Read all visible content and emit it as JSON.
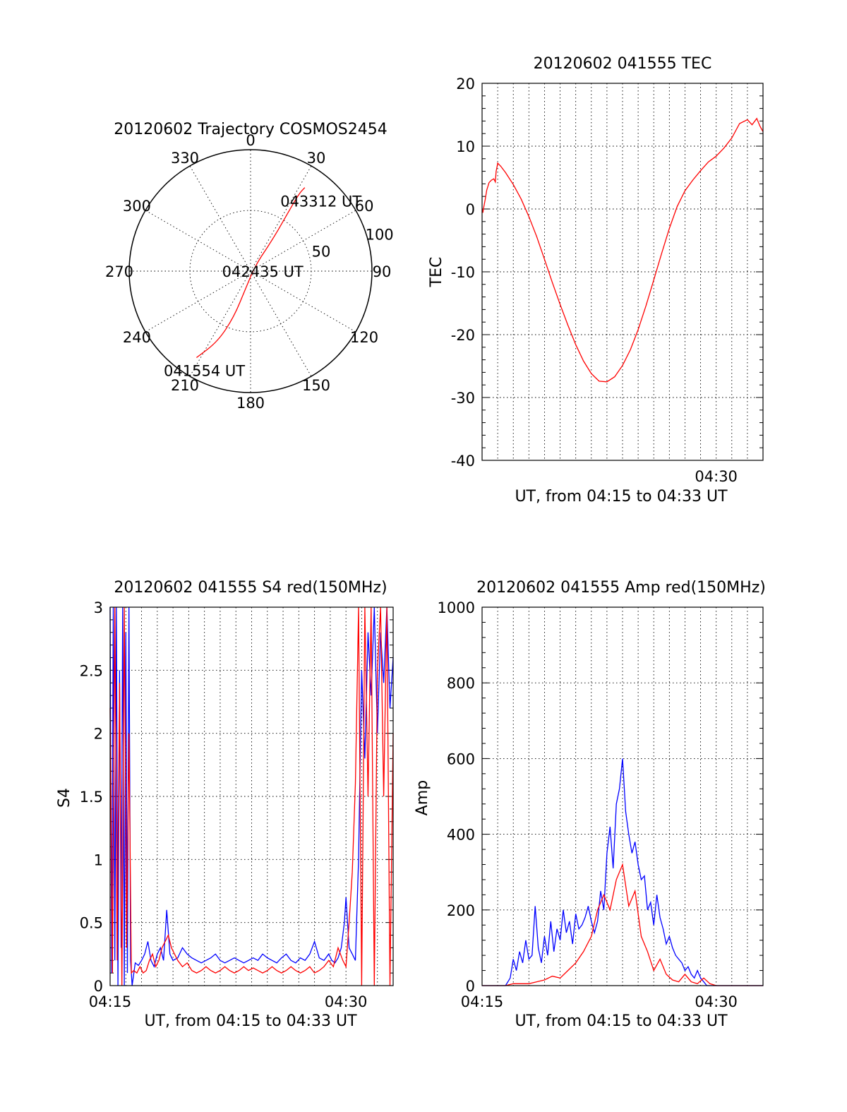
{
  "chart_data": [
    {
      "type": "polar",
      "title": "20120602 Trajectory COSMOS2454",
      "azimuth_labels": [
        "0",
        "30",
        "60",
        "90",
        "120",
        "150",
        "180",
        "210",
        "240",
        "270",
        "300",
        "330"
      ],
      "radius_labels": [
        "50",
        "100"
      ],
      "rlim": [
        0,
        100
      ],
      "grid": true,
      "trajectory": {
        "color": "#ff0000",
        "points": [
          {
            "az": 212,
            "r": 84
          },
          {
            "az": 205,
            "r": 64
          },
          {
            "az": 200,
            "r": 40
          },
          {
            "az": 196,
            "r": 15
          },
          {
            "az": 40,
            "r": 6
          },
          {
            "az": 35,
            "r": 30
          },
          {
            "az": 33,
            "r": 52
          },
          {
            "az": 32,
            "r": 75
          },
          {
            "az": 33,
            "r": 82
          }
        ]
      },
      "annotations": [
        {
          "text": "041554 UT",
          "az": 205,
          "r": 90
        },
        {
          "text": "042435 UT",
          "az": 90,
          "r": 10
        },
        {
          "text": "043312 UT",
          "az": 45,
          "r": 82
        }
      ]
    },
    {
      "type": "line",
      "title": "20120602 041555 TEC",
      "xlabel": "UT, from 04:15 to 04:33 UT",
      "ylabel": "TEC",
      "xlim": [
        15.0,
        33.0
      ],
      "ylim": [
        -40,
        20
      ],
      "yticks": [
        "-40",
        "-30",
        "-20",
        "-10",
        "0",
        "10",
        "20"
      ],
      "xticks": [
        {
          "value": 30,
          "label": "04:30"
        }
      ],
      "grid": true,
      "series": [
        {
          "color": "#ff0000",
          "x": [
            15.0,
            15.05,
            15.1,
            15.2,
            15.3,
            15.45,
            15.6,
            15.75,
            15.85,
            15.9,
            15.95,
            16.0,
            16.2,
            16.5,
            17.0,
            17.5,
            18.0,
            18.5,
            19.0,
            19.5,
            20.0,
            20.5,
            21.0,
            21.5,
            22.0,
            22.5,
            23.0,
            23.5,
            24.0,
            24.5,
            25.0,
            25.5,
            26.0,
            26.5,
            27.0,
            27.5,
            28.0,
            28.5,
            29.0,
            29.5,
            30.0,
            30.5,
            31.0,
            31.5,
            32.0,
            32.3,
            32.6,
            32.8,
            33.0
          ],
          "values": [
            0.0,
            -0.6,
            0.2,
            1.5,
            3.0,
            4.2,
            4.6,
            4.8,
            4.3,
            6.0,
            6.6,
            7.3,
            6.8,
            5.8,
            3.9,
            1.6,
            -1.2,
            -4.4,
            -8.0,
            -11.7,
            -15.2,
            -18.5,
            -21.6,
            -24.2,
            -26.2,
            -27.4,
            -27.5,
            -26.7,
            -24.9,
            -22.4,
            -19.2,
            -15.4,
            -11.3,
            -7.1,
            -3.1,
            0.4,
            2.9,
            4.6,
            6.1,
            7.5,
            8.4,
            9.7,
            11.3,
            13.6,
            14.2,
            13.4,
            14.4,
            13.2,
            12.3
          ]
        }
      ]
    },
    {
      "type": "line",
      "title": "20120602 041555 S4 red(150MHz)",
      "xlabel": "UT, from 04:15 to 04:33 UT",
      "ylabel": "S4",
      "xlim": [
        15.0,
        33.0
      ],
      "ylim": [
        0,
        3
      ],
      "yticks": [
        "0",
        "0.5",
        "1",
        "1.5",
        "2",
        "2.5",
        "3"
      ],
      "xticks": [
        {
          "value": 15,
          "label": "04:15"
        },
        {
          "value": 30,
          "label": "04:30"
        }
      ],
      "grid": true,
      "series": [
        {
          "color": "#0000ff",
          "x": [
            15.0,
            15.1,
            15.2,
            15.3,
            15.4,
            15.5,
            15.6,
            15.7,
            15.8,
            15.9,
            16.0,
            16.1,
            16.2,
            16.3,
            16.4,
            16.6,
            16.8,
            17.0,
            17.2,
            17.4,
            17.6,
            17.8,
            18.0,
            18.2,
            18.4,
            18.6,
            18.8,
            19.0,
            19.3,
            19.6,
            19.9,
            20.2,
            20.5,
            20.8,
            21.1,
            21.4,
            21.7,
            22.0,
            22.3,
            22.6,
            22.9,
            23.2,
            23.5,
            23.8,
            24.1,
            24.4,
            24.7,
            25.0,
            25.3,
            25.6,
            25.9,
            26.2,
            26.5,
            26.8,
            27.1,
            27.4,
            27.7,
            28.0,
            28.3,
            28.6,
            28.9,
            29.1,
            29.3,
            29.5,
            29.7,
            29.9,
            30.0,
            30.2,
            30.4,
            30.6,
            30.8,
            31.0,
            31.2,
            31.4,
            31.6,
            31.8,
            32.0,
            32.2,
            32.4,
            32.6,
            32.8,
            33.0
          ],
          "values": [
            3.0,
            0.1,
            3.0,
            0.2,
            3.0,
            0.0,
            2.5,
            0.3,
            3.0,
            0.0,
            2.8,
            0.1,
            3.0,
            0.2,
            0.0,
            0.18,
            0.16,
            0.2,
            0.25,
            0.35,
            0.2,
            0.15,
            0.25,
            0.3,
            0.2,
            0.6,
            0.25,
            0.2,
            0.22,
            0.3,
            0.25,
            0.22,
            0.2,
            0.18,
            0.2,
            0.22,
            0.25,
            0.2,
            0.18,
            0.2,
            0.22,
            0.2,
            0.18,
            0.2,
            0.22,
            0.2,
            0.25,
            0.22,
            0.2,
            0.18,
            0.22,
            0.25,
            0.2,
            0.18,
            0.22,
            0.2,
            0.25,
            0.35,
            0.22,
            0.2,
            0.25,
            0.2,
            0.18,
            0.22,
            0.3,
            0.5,
            0.7,
            0.3,
            0.25,
            0.2,
            1.0,
            2.5,
            1.8,
            2.8,
            2.3,
            3.0,
            2.0,
            2.8,
            2.4,
            3.0,
            2.2,
            2.6
          ]
        },
        {
          "color": "#ff0000",
          "x": [
            15.0,
            15.15,
            15.3,
            15.45,
            15.6,
            15.75,
            15.9,
            16.05,
            16.2,
            16.35,
            16.5,
            16.7,
            16.9,
            17.1,
            17.3,
            17.5,
            17.7,
            17.9,
            18.1,
            18.3,
            18.5,
            18.7,
            18.9,
            19.1,
            19.3,
            19.6,
            19.9,
            20.2,
            20.5,
            20.8,
            21.1,
            21.4,
            21.7,
            22.0,
            22.3,
            22.6,
            22.9,
            23.2,
            23.5,
            23.8,
            24.1,
            24.4,
            24.7,
            25.0,
            25.3,
            25.6,
            25.9,
            26.2,
            26.5,
            26.8,
            27.1,
            27.4,
            27.7,
            28.0,
            28.3,
            28.6,
            28.9,
            29.2,
            29.5,
            29.8,
            30.0,
            30.2,
            30.4,
            30.6,
            30.8,
            31.0,
            31.2,
            31.4,
            31.6,
            31.8,
            32.0,
            32.2,
            32.4,
            32.6,
            32.8,
            33.0
          ],
          "values": [
            2.2,
            0.1,
            3.0,
            0.2,
            2.4,
            0.0,
            3.0,
            0.3,
            2.0,
            0.1,
            0.12,
            0.1,
            0.15,
            0.1,
            0.12,
            0.2,
            0.25,
            0.15,
            0.2,
            0.3,
            0.35,
            0.4,
            0.3,
            0.25,
            0.2,
            0.15,
            0.18,
            0.12,
            0.1,
            0.12,
            0.15,
            0.12,
            0.1,
            0.12,
            0.15,
            0.12,
            0.1,
            0.12,
            0.15,
            0.12,
            0.14,
            0.12,
            0.1,
            0.12,
            0.15,
            0.12,
            0.1,
            0.12,
            0.15,
            0.12,
            0.1,
            0.12,
            0.15,
            0.1,
            0.12,
            0.15,
            0.2,
            0.15,
            0.3,
            0.2,
            0.15,
            0.5,
            0.9,
            1.6,
            3.0,
            0.0,
            3.0,
            1.5,
            3.0,
            0.0,
            2.5,
            3.0,
            1.5,
            3.0,
            0.0,
            2.0
          ]
        }
      ]
    },
    {
      "type": "line",
      "title": "20120602 041555 Amp red(150MHz)",
      "xlabel": "UT, from 04:15 to 04:33 UT",
      "ylabel": "Amp",
      "xlim": [
        15.0,
        33.0
      ],
      "ylim": [
        0,
        1000
      ],
      "yticks": [
        "0",
        "200",
        "400",
        "600",
        "800",
        "1000"
      ],
      "xticks": [
        {
          "value": 15,
          "label": "04:15"
        },
        {
          "value": 30,
          "label": "04:30"
        }
      ],
      "grid": true,
      "series": [
        {
          "color": "#0000ff",
          "x": [
            15.0,
            16.0,
            16.5,
            16.8,
            17.0,
            17.2,
            17.4,
            17.6,
            17.8,
            18.0,
            18.2,
            18.4,
            18.6,
            18.8,
            19.0,
            19.2,
            19.4,
            19.6,
            19.8,
            20.0,
            20.2,
            20.4,
            20.6,
            20.8,
            21.0,
            21.2,
            21.4,
            21.6,
            21.8,
            22.0,
            22.2,
            22.4,
            22.6,
            22.8,
            23.0,
            23.2,
            23.4,
            23.6,
            23.8,
            24.0,
            24.2,
            24.4,
            24.6,
            24.8,
            25.0,
            25.2,
            25.4,
            25.6,
            25.8,
            26.0,
            26.2,
            26.4,
            26.6,
            26.8,
            27.0,
            27.2,
            27.4,
            27.6,
            27.8,
            28.0,
            28.2,
            28.4,
            28.6,
            28.8,
            29.0,
            29.2,
            29.4,
            29.6,
            29.8,
            30.0,
            30.5,
            31.0,
            31.5,
            32.0,
            33.0
          ],
          "values": [
            0,
            0,
            0,
            20,
            70,
            40,
            90,
            60,
            120,
            70,
            80,
            210,
            100,
            60,
            130,
            80,
            170,
            90,
            150,
            120,
            200,
            140,
            170,
            110,
            190,
            150,
            160,
            180,
            210,
            170,
            140,
            170,
            250,
            200,
            350,
            420,
            310,
            480,
            520,
            600,
            460,
            400,
            350,
            380,
            320,
            280,
            290,
            200,
            220,
            160,
            240,
            180,
            150,
            110,
            130,
            100,
            80,
            70,
            60,
            40,
            50,
            30,
            20,
            40,
            20,
            10,
            0,
            0,
            0,
            0,
            0,
            0,
            0,
            0,
            0
          ]
        },
        {
          "color": "#ff0000",
          "x": [
            15.0,
            16.0,
            16.5,
            17.0,
            17.5,
            18.0,
            18.5,
            19.0,
            19.5,
            20.0,
            20.5,
            21.0,
            21.5,
            22.0,
            22.4,
            22.8,
            23.2,
            23.6,
            24.0,
            24.4,
            24.8,
            25.2,
            25.6,
            26.0,
            26.4,
            26.8,
            27.2,
            27.6,
            28.0,
            28.4,
            28.8,
            29.2,
            29.6,
            30.0,
            31.0,
            33.0
          ],
          "values": [
            0,
            0,
            0,
            5,
            5,
            5,
            10,
            15,
            25,
            20,
            40,
            60,
            90,
            130,
            200,
            240,
            200,
            280,
            320,
            210,
            250,
            130,
            90,
            40,
            70,
            30,
            15,
            10,
            30,
            10,
            5,
            20,
            5,
            0,
            0,
            0
          ]
        }
      ]
    }
  ]
}
